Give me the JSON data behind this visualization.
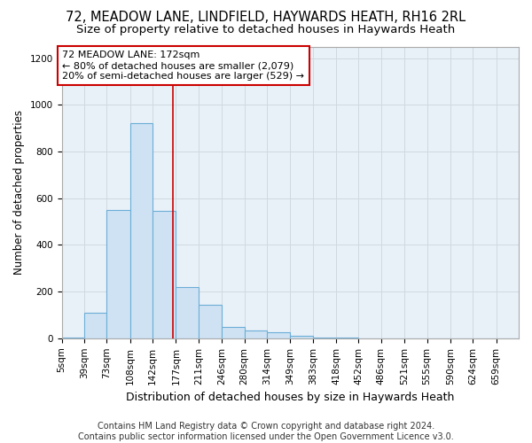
{
  "title1": "72, MEADOW LANE, LINDFIELD, HAYWARDS HEATH, RH16 2RL",
  "title2": "Size of property relative to detached houses in Haywards Heath",
  "xlabel": "Distribution of detached houses by size in Haywards Heath",
  "ylabel": "Number of detached properties",
  "bar_color": "#cfe2f3",
  "bar_edge_color": "#6baed6",
  "bin_edges": [
    5,
    39,
    73,
    108,
    142,
    177,
    211,
    246,
    280,
    314,
    349,
    383,
    418,
    452,
    486,
    521,
    555,
    590,
    624,
    659,
    693
  ],
  "bar_heights": [
    5,
    110,
    550,
    920,
    545,
    220,
    145,
    50,
    35,
    25,
    10,
    5,
    2,
    1,
    0,
    0,
    0,
    0,
    0,
    0
  ],
  "property_size": 172,
  "vline_color": "#cc0000",
  "annotation_line1": "72 MEADOW LANE: 172sqm",
  "annotation_line2": "← 80% of detached houses are smaller (2,079)",
  "annotation_line3": "20% of semi-detached houses are larger (529) →",
  "annotation_box_facecolor": "#ffffff",
  "annotation_box_edgecolor": "#cc0000",
  "ylim": [
    0,
    1250
  ],
  "yticks": [
    0,
    200,
    400,
    600,
    800,
    1000,
    1200
  ],
  "grid_color": "#d0d8e0",
  "axes_facecolor": "#e8f0f8",
  "fig_facecolor": "#ffffff",
  "footer_text": "Contains HM Land Registry data © Crown copyright and database right 2024.\nContains public sector information licensed under the Open Government Licence v3.0.",
  "title1_fontsize": 10.5,
  "title2_fontsize": 9.5,
  "xlabel_fontsize": 9,
  "ylabel_fontsize": 8.5,
  "tick_fontsize": 7.5,
  "annotation_fontsize": 8,
  "footer_fontsize": 7
}
